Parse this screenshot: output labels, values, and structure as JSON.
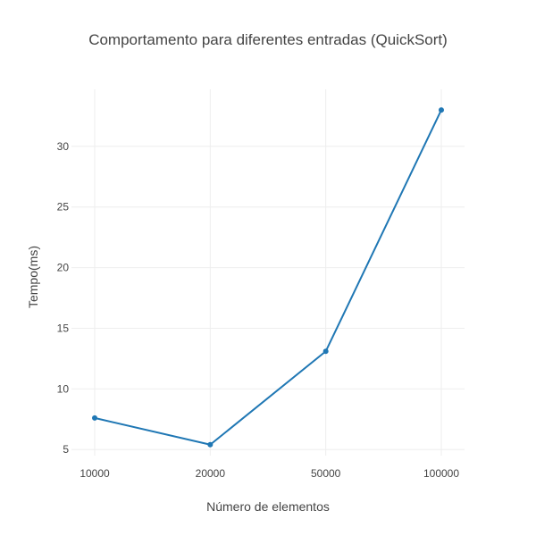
{
  "chart_data": {
    "type": "line",
    "title": "Comportamento para diferentes entradas (QuickSort)",
    "xlabel": "Número de elementos",
    "ylabel": "Tempo(ms)",
    "categories": [
      "10000",
      "20000",
      "50000",
      "100000"
    ],
    "series": [
      {
        "values": [
          7.6,
          5.4,
          13.1,
          33.0
        ]
      }
    ],
    "ylim": [
      4.5,
      34.7
    ],
    "yticks": [
      5,
      10,
      15,
      20,
      25,
      30
    ],
    "grid": true,
    "legend": "none",
    "colors": {
      "line": "#1f77b4",
      "grid": "#eeeeee",
      "text": "#444444"
    }
  }
}
